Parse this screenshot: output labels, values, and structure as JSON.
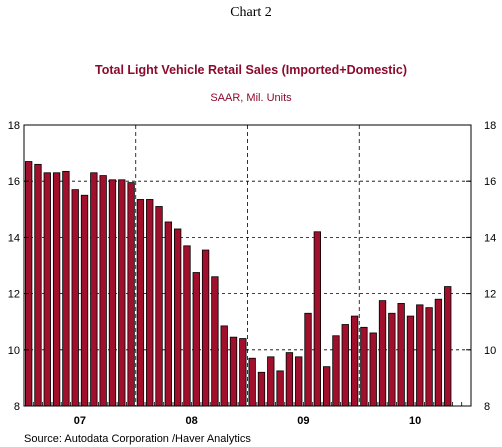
{
  "chart_label": "Chart 2",
  "chart_data": {
    "type": "bar",
    "title": "Total Light Vehicle Retail Sales (Imported+Domestic)",
    "subtitle": "SAAR, Mil. Units",
    "source": "Source:  Autodata Corporation /Haver Analytics",
    "ylim": [
      8,
      18
    ],
    "yticks": [
      8,
      10,
      12,
      14,
      16,
      18
    ],
    "year_labels": [
      "07",
      "08",
      "09",
      "10"
    ],
    "start_month": "2007-01",
    "grid": true,
    "bar_color": "#a0102c",
    "values": [
      16.7,
      16.6,
      16.3,
      16.3,
      16.35,
      15.7,
      15.5,
      16.3,
      16.2,
      16.05,
      16.05,
      15.95,
      15.35,
      15.35,
      15.1,
      14.55,
      14.3,
      13.7,
      12.75,
      13.55,
      12.6,
      10.85,
      10.45,
      10.4,
      9.7,
      9.2,
      9.75,
      9.25,
      9.9,
      9.75,
      11.3,
      14.2,
      9.4,
      10.5,
      10.9,
      11.2,
      10.8,
      10.6,
      11.75,
      11.3,
      11.65,
      11.2,
      11.6,
      11.5,
      11.8,
      12.25
    ]
  }
}
